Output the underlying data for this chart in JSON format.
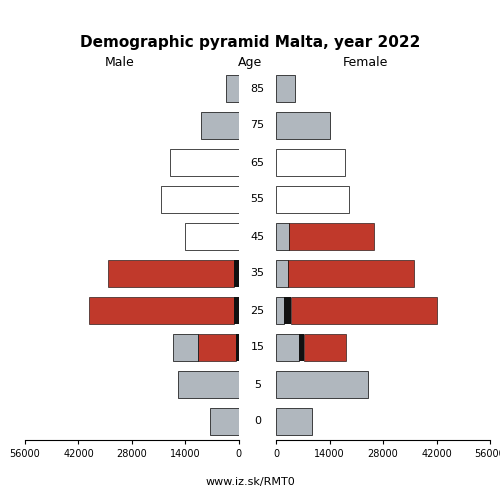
{
  "title": "Demographic pyramid Malta, year 2022",
  "label_male": "Male",
  "label_age": "Age",
  "label_female": "Female",
  "footer": "www.iz.sk/RMT0",
  "age_groups": [
    0,
    5,
    15,
    25,
    35,
    45,
    55,
    65,
    75,
    85
  ],
  "color_inactive": "#b0b7be",
  "color_unemployed": "#111111",
  "color_employed": "#c0392b",
  "male_inactive": [
    7500,
    16000,
    6500,
    0,
    0,
    14000,
    20500,
    18000,
    10000,
    3500
  ],
  "male_unemployed": [
    0,
    0,
    700,
    1200,
    1200,
    0,
    0,
    0,
    0,
    0
  ],
  "male_employed": [
    0,
    0,
    10000,
    38000,
    33000,
    0,
    0,
    0,
    0,
    0
  ],
  "male_white_idx": [
    5,
    6,
    7
  ],
  "female_inactive": [
    9500,
    24000,
    6000,
    2000,
    3000,
    3500,
    19000,
    18000,
    14000,
    5000
  ],
  "female_unemployed": [
    0,
    0,
    1200,
    2000,
    0,
    0,
    0,
    0,
    0,
    0
  ],
  "female_employed": [
    0,
    0,
    11000,
    38000,
    33000,
    22000,
    0,
    0,
    0,
    0
  ],
  "female_white_idx": [
    6,
    7
  ],
  "xlim": 56000,
  "bar_height": 0.75
}
